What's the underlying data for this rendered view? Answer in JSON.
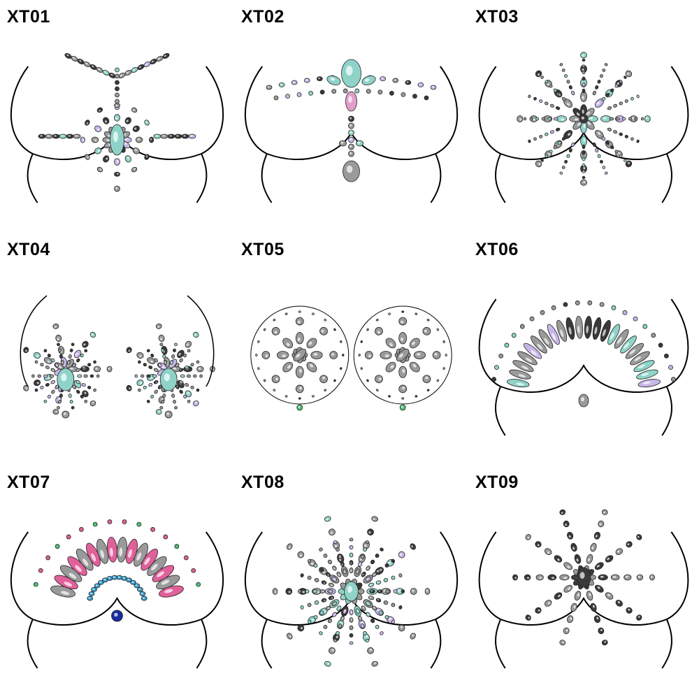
{
  "products": [
    {
      "label": "XT01",
      "pattern": "tshape"
    },
    {
      "label": "XT02",
      "pattern": "necklace"
    },
    {
      "label": "XT03",
      "pattern": "star"
    },
    {
      "label": "XT04",
      "pattern": "leaf-pair"
    },
    {
      "label": "XT05",
      "pattern": "flower-pair"
    },
    {
      "label": "XT06",
      "pattern": "fan"
    },
    {
      "label": "XT07",
      "pattern": "fan-pink"
    },
    {
      "label": "XT08",
      "pattern": "burst"
    },
    {
      "label": "XT09",
      "pattern": "burst-silver"
    }
  ],
  "colors": {
    "outline": "#000000",
    "gem_silver": "#9a9a9a",
    "gem_dark": "#3a3a3a",
    "gem_aurora": "#8fd3c8",
    "gem_pink": "#e0609a",
    "gem_blue": "#1a2aa0",
    "gem_green": "#4fc27a"
  }
}
